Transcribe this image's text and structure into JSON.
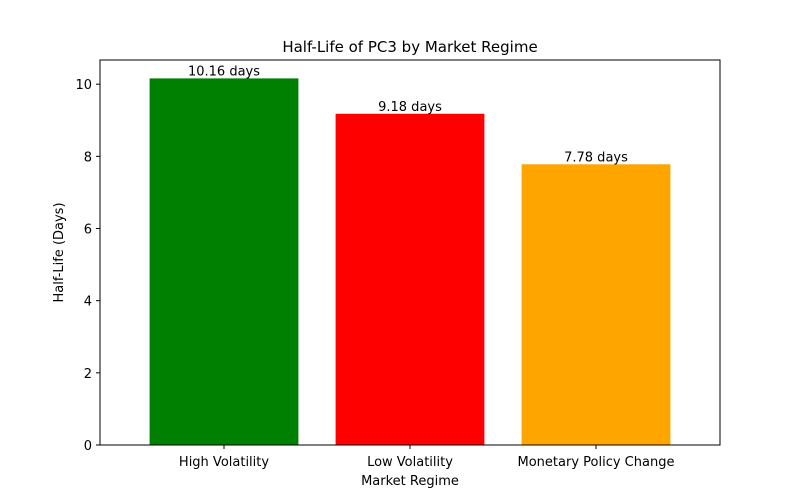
{
  "chart_data": {
    "type": "bar",
    "title": "Half-Life of PC3 by Market Regime",
    "xlabel": "Market Regime",
    "ylabel": "Half-Life (Days)",
    "categories": [
      "High Volatility",
      "Low Volatility",
      "Monetary Policy Change"
    ],
    "values": [
      10.16,
      9.18,
      7.78
    ],
    "data_labels": [
      "10.16 days",
      "9.18 days",
      "7.78 days"
    ],
    "colors": [
      "#008000",
      "#ff0000",
      "#ffa500"
    ],
    "ylim": [
      0,
      10.67
    ],
    "yticks": [
      0,
      2,
      4,
      6,
      8,
      10
    ],
    "ytick_labels": [
      "0",
      "2",
      "4",
      "6",
      "8",
      "10"
    ],
    "grid": false,
    "legend": "none"
  }
}
